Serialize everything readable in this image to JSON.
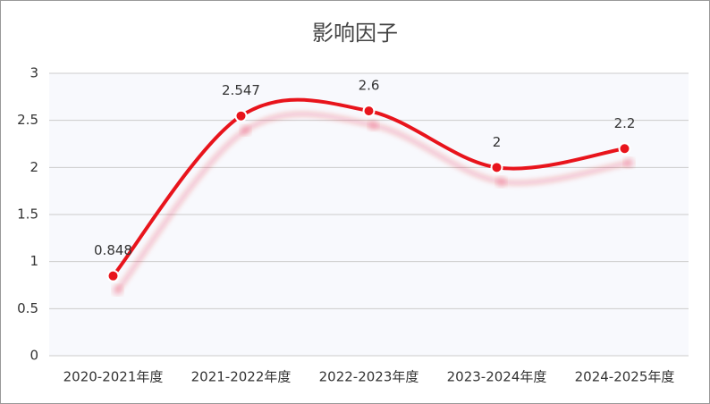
{
  "chart_data": {
    "type": "line",
    "title": "影响因子",
    "categories": [
      "2020-2021年度",
      "2021-2022年度",
      "2022-2023年度",
      "2023-2024年度",
      "2024-2025年度"
    ],
    "values": [
      0.848,
      2.547,
      2.6,
      2,
      2.2
    ],
    "color": "#e8141c",
    "ylim": [
      0,
      3
    ],
    "yticks": [
      0,
      0.5,
      1,
      1.5,
      2,
      2.5,
      3
    ],
    "grid": true,
    "smooth": true
  }
}
